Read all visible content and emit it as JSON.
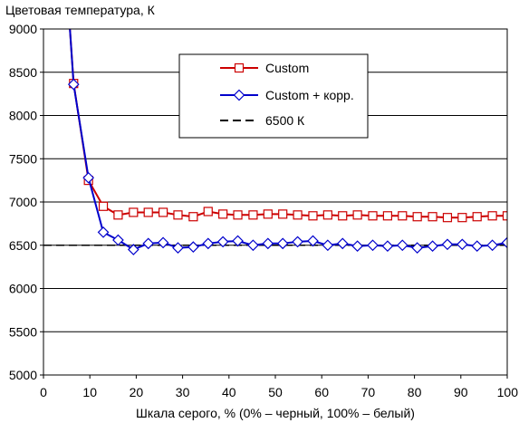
{
  "chart_data": {
    "type": "line",
    "ylabel": "Цветовая температура, К",
    "xlabel": "Шкала серого, % (0% – черный, 100% – белый)",
    "xlim": [
      0,
      100
    ],
    "ylim": [
      5000,
      9000
    ],
    "x_ticks": [
      "0",
      "10",
      "20",
      "30",
      "40",
      "50",
      "60",
      "70",
      "80",
      "90",
      "100"
    ],
    "y_ticks": [
      "5000",
      "5500",
      "6000",
      "6500",
      "7000",
      "7500",
      "8000",
      "8500",
      "9000"
    ],
    "grid": "horizontal",
    "legend_position": "top-right",
    "series": [
      {
        "name": "Custom",
        "color": "#cc0000",
        "marker": "square",
        "x": [
          5.7,
          6.5,
          9.7,
          12.9,
          16.1,
          19.4,
          22.6,
          25.8,
          29.0,
          32.3,
          35.5,
          38.7,
          41.9,
          45.2,
          48.4,
          51.6,
          54.8,
          58.1,
          61.3,
          64.5,
          67.7,
          71.0,
          74.2,
          77.4,
          80.6,
          83.9,
          87.1,
          90.3,
          93.5,
          96.8,
          100
        ],
        "values": [
          9000,
          8370,
          7250,
          6950,
          6850,
          6880,
          6880,
          6880,
          6850,
          6830,
          6890,
          6860,
          6850,
          6850,
          6860,
          6860,
          6850,
          6840,
          6850,
          6840,
          6850,
          6840,
          6840,
          6840,
          6830,
          6830,
          6820,
          6820,
          6830,
          6840,
          6840
        ]
      },
      {
        "name": "Custom + корр.",
        "color": "#0000cc",
        "marker": "diamond",
        "x": [
          5.7,
          6.5,
          9.7,
          12.9,
          16.1,
          19.4,
          22.6,
          25.8,
          29.0,
          32.3,
          35.5,
          38.7,
          41.9,
          45.2,
          48.4,
          51.6,
          54.8,
          58.1,
          61.3,
          64.5,
          67.7,
          71.0,
          74.2,
          77.4,
          80.6,
          83.9,
          87.1,
          90.3,
          93.5,
          96.8,
          100
        ],
        "values": [
          9000,
          8360,
          7280,
          6650,
          6560,
          6450,
          6520,
          6530,
          6470,
          6480,
          6520,
          6540,
          6550,
          6500,
          6520,
          6520,
          6540,
          6550,
          6500,
          6520,
          6490,
          6500,
          6490,
          6500,
          6470,
          6490,
          6510,
          6510,
          6490,
          6500,
          6530
        ]
      },
      {
        "name": "6500 К",
        "color": "#000000",
        "marker": "none",
        "dashed": true,
        "x": [
          0,
          100
        ],
        "values": [
          6500,
          6500
        ]
      }
    ]
  }
}
